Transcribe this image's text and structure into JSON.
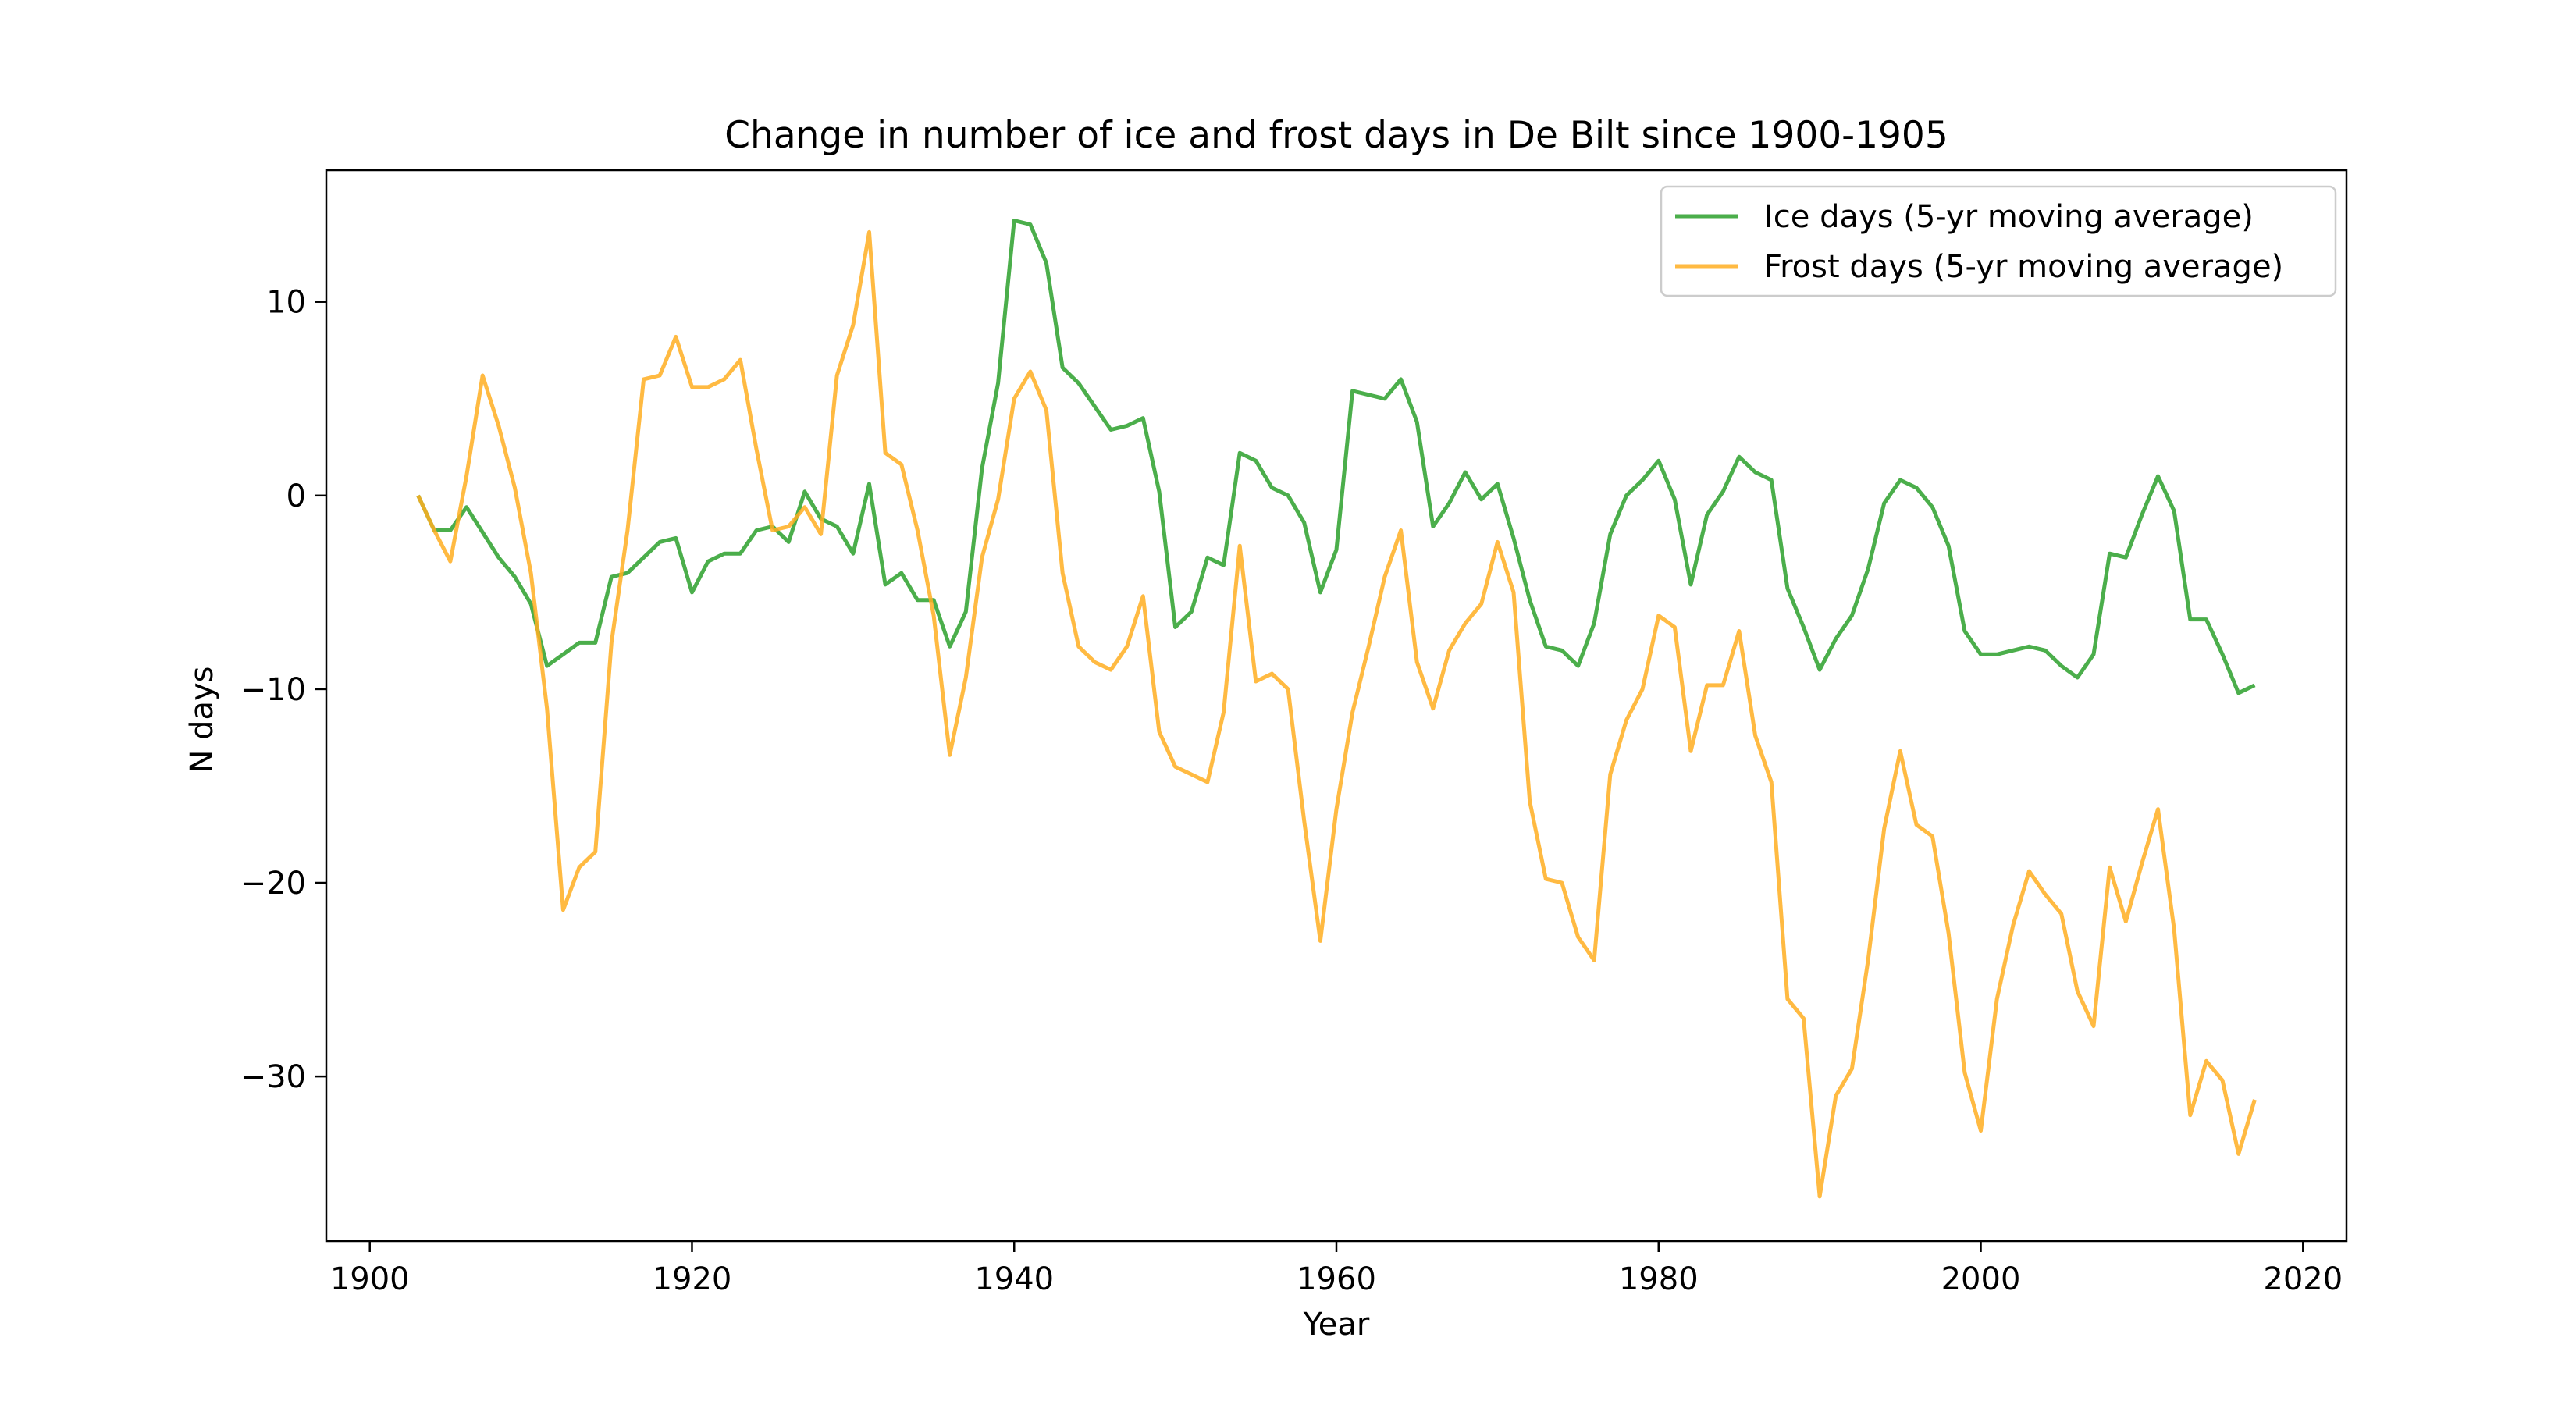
{
  "chart_data": {
    "type": "line",
    "title": "Change in number of ice and frost days in De Bilt since 1900-1905",
    "xlabel": "Year",
    "ylabel": "N days",
    "xlim": [
      1897.3,
      2022.7
    ],
    "ylim": [
      -38.5,
      16.8
    ],
    "xticks": [
      1900,
      1920,
      1940,
      1960,
      1980,
      2000,
      2020
    ],
    "yticks": [
      10,
      0,
      -10,
      -20,
      -30
    ],
    "xtick_labels": [
      "1900",
      "1920",
      "1940",
      "1960",
      "1980",
      "2000",
      "2020"
    ],
    "ytick_labels": [
      "10",
      "0",
      "−10",
      "−20",
      "−30"
    ],
    "grid": false,
    "legend_position": "top-right",
    "x": [
      1903,
      1904,
      1905,
      1906,
      1907,
      1908,
      1909,
      1910,
      1911,
      1912,
      1913,
      1914,
      1915,
      1916,
      1917,
      1918,
      1919,
      1920,
      1921,
      1922,
      1923,
      1924,
      1925,
      1926,
      1927,
      1928,
      1929,
      1930,
      1931,
      1932,
      1933,
      1934,
      1935,
      1936,
      1937,
      1938,
      1939,
      1940,
      1941,
      1942,
      1943,
      1944,
      1945,
      1946,
      1947,
      1948,
      1949,
      1950,
      1951,
      1952,
      1953,
      1954,
      1955,
      1956,
      1957,
      1958,
      1959,
      1960,
      1961,
      1962,
      1963,
      1964,
      1965,
      1966,
      1967,
      1968,
      1969,
      1970,
      1971,
      1972,
      1973,
      1974,
      1975,
      1976,
      1977,
      1978,
      1979,
      1980,
      1981,
      1982,
      1983,
      1984,
      1985,
      1986,
      1987,
      1988,
      1989,
      1990,
      1991,
      1992,
      1993,
      1994,
      1995,
      1996,
      1997,
      1998,
      1999,
      2000,
      2001,
      2002,
      2003,
      2004,
      2005,
      2006,
      2007,
      2008,
      2009,
      2010,
      2011,
      2012,
      2013,
      2014,
      2015,
      2016,
      2017
    ],
    "series": [
      {
        "name": "Ice days (5-yr moving average)",
        "color": "#2ca02c",
        "values": [
          0,
          -1.8,
          -1.8,
          -0.6,
          -1.9,
          -3.2,
          -4.2,
          -5.6,
          -8.8,
          -8.2,
          -7.6,
          -7.6,
          -4.2,
          -4.0,
          -3.2,
          -2.4,
          -2.2,
          -5.0,
          -3.4,
          -3.0,
          -3.0,
          -1.8,
          -1.6,
          -2.4,
          0.2,
          -1.2,
          -1.6,
          -3.0,
          0.6,
          -4.6,
          -4.0,
          -5.4,
          -5.4,
          -7.8,
          -6.0,
          1.4,
          5.8,
          14.2,
          14.0,
          12.0,
          6.6,
          5.8,
          4.6,
          3.4,
          3.6,
          4.0,
          0.2,
          -6.8,
          -6.0,
          -3.2,
          -3.6,
          2.2,
          1.8,
          0.4,
          0,
          -1.4,
          -5.0,
          -2.8,
          5.4,
          5.2,
          5.0,
          6.0,
          3.8,
          -1.6,
          -0.4,
          1.2,
          -0.2,
          0.6,
          -2.2,
          -5.4,
          -7.8,
          -8.0,
          -8.8,
          -6.6,
          -2.0,
          0,
          0.8,
          1.8,
          -0.2,
          -4.6,
          -1.0,
          0.2,
          2.0,
          1.2,
          0.8,
          -4.8,
          -6.8,
          -9.0,
          -7.4,
          -6.2,
          -3.8,
          -0.4,
          0.8,
          0.4,
          -0.6,
          -2.6,
          -7.0,
          -8.2,
          -8.2,
          -8.0,
          -7.8,
          -8.0,
          -8.8,
          -9.4,
          -8.2,
          -3.0,
          -3.2,
          -1.0,
          1.0,
          -0.8,
          -6.4,
          -6.4,
          -8.2,
          -10.2,
          -9.8
        ]
      },
      {
        "name": "Frost days (5-yr moving average)",
        "color": "#ffae21",
        "values": [
          0,
          -1.8,
          -3.4,
          1.0,
          6.2,
          3.6,
          0.4,
          -4.0,
          -11.0,
          -21.4,
          -19.2,
          -18.4,
          -7.6,
          -1.8,
          6.0,
          6.2,
          8.2,
          5.6,
          5.6,
          6.0,
          7.0,
          2.4,
          -1.8,
          -1.6,
          -0.6,
          -2.0,
          6.2,
          8.8,
          13.6,
          2.2,
          1.6,
          -1.8,
          -6.2,
          -13.4,
          -9.4,
          -3.2,
          -0.2,
          5.0,
          6.4,
          4.4,
          -4.0,
          -7.8,
          -8.6,
          -9.0,
          -7.8,
          -5.2,
          -12.2,
          -14.0,
          -14.4,
          -14.8,
          -11.2,
          -2.6,
          -9.6,
          -9.2,
          -10.0,
          -16.8,
          -23.0,
          -16.2,
          -11.2,
          -7.8,
          -4.2,
          -1.8,
          -8.6,
          -11.0,
          -8.0,
          -6.6,
          -5.6,
          -2.4,
          -5.0,
          -15.8,
          -19.8,
          -20.0,
          -22.8,
          -24.0,
          -14.4,
          -11.6,
          -10.0,
          -6.2,
          -6.8,
          -13.2,
          -9.8,
          -9.8,
          -7.0,
          -12.4,
          -14.8,
          -26.0,
          -27.0,
          -36.2,
          -31.0,
          -29.6,
          -24.0,
          -17.2,
          -13.2,
          -17.0,
          -17.6,
          -22.6,
          -29.8,
          -32.8,
          -26.0,
          -22.2,
          -19.4,
          -20.6,
          -21.6,
          -25.6,
          -27.4,
          -19.2,
          -22.0,
          -19.0,
          -16.2,
          -22.4,
          -32.0,
          -29.2,
          -30.2,
          -34.0,
          -31.2
        ]
      }
    ]
  }
}
